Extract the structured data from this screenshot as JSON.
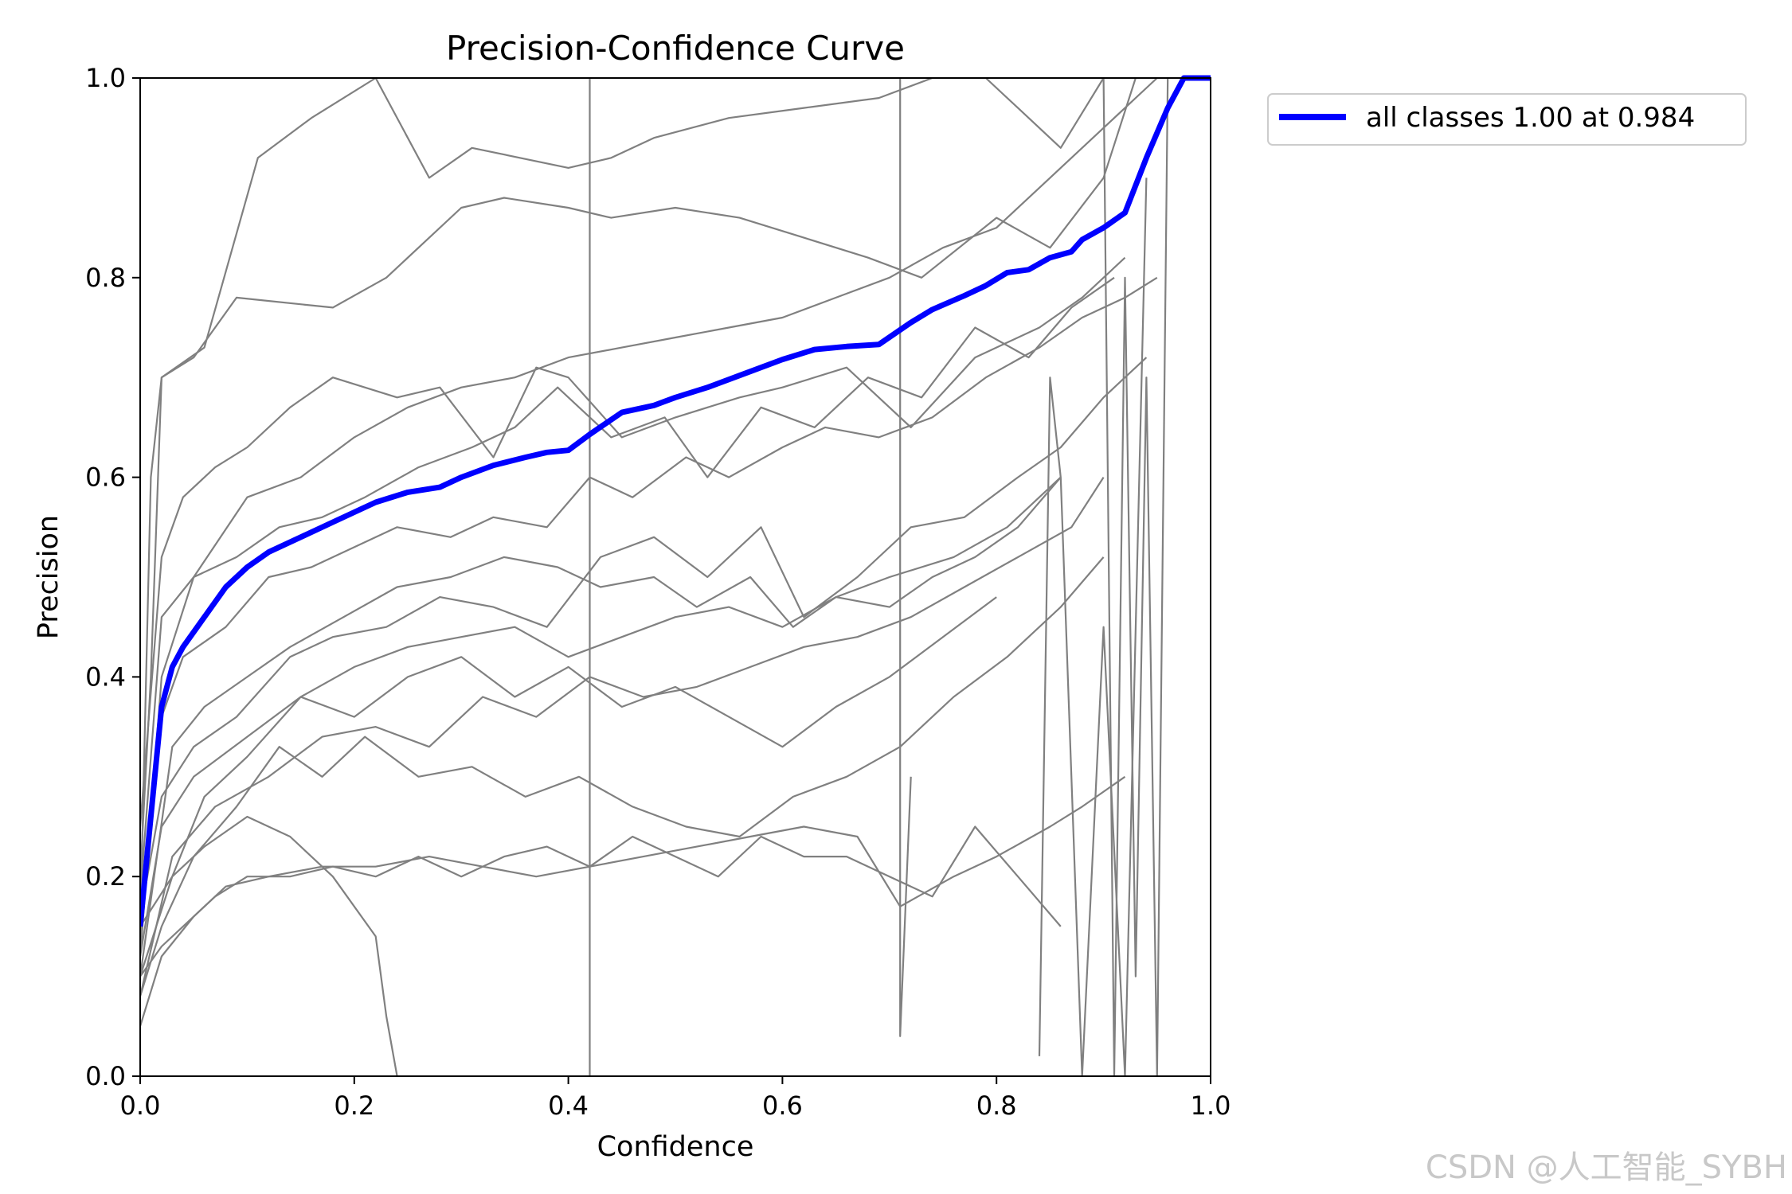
{
  "watermark": "CSDN @人工智能_SYBH",
  "chart_data": {
    "type": "line",
    "title": "Precision-Confidence Curve",
    "xlabel": "Confidence",
    "ylabel": "Precision",
    "xlim": [
      0,
      1
    ],
    "ylim": [
      0,
      1
    ],
    "xticks": [
      "0.0",
      "0.2",
      "0.4",
      "0.6",
      "0.8",
      "1.0"
    ],
    "yticks": [
      "0.0",
      "0.2",
      "0.4",
      "0.6",
      "0.8",
      "1.0"
    ],
    "legend_position": "outside-top-right",
    "colors": {
      "class": "#808080",
      "all": "#0000ff"
    },
    "series": [
      {
        "name": "all classes 1.00 at 0.984",
        "color": "#0000ff",
        "emphasis": true,
        "x": [
          0,
          0.01,
          0.02,
          0.03,
          0.04,
          0.06,
          0.08,
          0.1,
          0.12,
          0.15,
          0.18,
          0.2,
          0.22,
          0.25,
          0.28,
          0.3,
          0.33,
          0.36,
          0.38,
          0.4,
          0.42,
          0.45,
          0.48,
          0.5,
          0.53,
          0.56,
          0.6,
          0.63,
          0.66,
          0.69,
          0.72,
          0.74,
          0.77,
          0.79,
          0.81,
          0.83,
          0.85,
          0.87,
          0.88,
          0.9,
          0.92,
          0.94,
          0.96,
          0.975,
          0.984,
          1.0
        ],
        "y": [
          0.15,
          0.26,
          0.37,
          0.41,
          0.43,
          0.46,
          0.49,
          0.51,
          0.525,
          0.54,
          0.555,
          0.565,
          0.575,
          0.585,
          0.59,
          0.6,
          0.612,
          0.62,
          0.625,
          0.627,
          0.643,
          0.665,
          0.672,
          0.68,
          0.69,
          0.702,
          0.718,
          0.728,
          0.731,
          0.733,
          0.755,
          0.768,
          0.782,
          0.792,
          0.805,
          0.808,
          0.82,
          0.826,
          0.838,
          0.85,
          0.865,
          0.92,
          0.97,
          1.0,
          1.0,
          1.0
        ]
      },
      {
        "x": [
          0,
          0.02,
          0.05,
          0.1,
          0.15,
          0.2,
          0.25,
          0.3,
          0.35,
          0.4,
          0.45,
          0.5,
          0.55,
          0.6,
          0.65,
          0.7,
          0.75,
          0.8,
          0.85,
          0.9,
          0.95
        ],
        "y": [
          0.12,
          0.4,
          0.5,
          0.58,
          0.6,
          0.64,
          0.67,
          0.69,
          0.7,
          0.72,
          0.73,
          0.74,
          0.75,
          0.76,
          0.78,
          0.8,
          0.83,
          0.85,
          0.9,
          0.95,
          1.0
        ]
      },
      {
        "x": [
          0,
          0.01,
          0.02,
          0.06,
          0.11,
          0.16,
          0.22,
          0.27,
          0.31,
          0.4,
          0.44,
          0.48,
          0.55,
          0.62,
          0.69,
          0.74,
          0.79,
          0.82,
          0.86,
          0.9
        ],
        "y": [
          0.15,
          0.6,
          0.7,
          0.73,
          0.92,
          0.96,
          1.0,
          0.9,
          0.93,
          0.91,
          0.92,
          0.94,
          0.96,
          0.97,
          0.98,
          1.0,
          1.0,
          0.97,
          0.93,
          1.0
        ]
      },
      {
        "x": [
          0,
          0.01,
          0.02,
          0.05,
          0.09,
          0.18,
          0.23,
          0.3,
          0.34,
          0.4,
          0.44,
          0.5,
          0.56,
          0.62,
          0.68,
          0.73,
          0.8,
          0.85,
          0.9,
          0.93
        ],
        "y": [
          0.2,
          0.4,
          0.7,
          0.72,
          0.78,
          0.77,
          0.8,
          0.87,
          0.88,
          0.87,
          0.86,
          0.87,
          0.86,
          0.84,
          0.82,
          0.8,
          0.86,
          0.83,
          0.9,
          1.0
        ]
      },
      {
        "x": [
          0,
          0.02,
          0.04,
          0.07,
          0.1,
          0.14,
          0.18,
          0.24,
          0.28,
          0.33,
          0.37,
          0.4,
          0.45,
          0.5,
          0.56,
          0.6,
          0.66,
          0.72,
          0.78,
          0.84,
          0.88,
          0.92
        ],
        "y": [
          0.25,
          0.52,
          0.58,
          0.61,
          0.63,
          0.67,
          0.7,
          0.68,
          0.69,
          0.62,
          0.71,
          0.7,
          0.64,
          0.66,
          0.68,
          0.69,
          0.71,
          0.65,
          0.72,
          0.75,
          0.78,
          0.82
        ]
      },
      {
        "x": [
          0,
          0.02,
          0.05,
          0.09,
          0.13,
          0.17,
          0.21,
          0.26,
          0.31,
          0.35,
          0.39,
          0.44,
          0.49,
          0.53,
          0.58,
          0.63,
          0.68,
          0.73,
          0.78,
          0.83,
          0.87,
          0.91
        ],
        "y": [
          0.18,
          0.46,
          0.5,
          0.52,
          0.55,
          0.56,
          0.58,
          0.61,
          0.63,
          0.65,
          0.69,
          0.64,
          0.66,
          0.6,
          0.67,
          0.65,
          0.7,
          0.68,
          0.75,
          0.72,
          0.77,
          0.8
        ]
      },
      {
        "x": [
          0,
          0.02,
          0.04,
          0.08,
          0.12,
          0.16,
          0.2,
          0.24,
          0.29,
          0.33,
          0.38,
          0.42,
          0.46,
          0.51,
          0.55,
          0.6,
          0.64,
          0.69,
          0.74,
          0.79,
          0.84,
          0.88,
          0.92,
          0.95
        ],
        "y": [
          0.14,
          0.36,
          0.42,
          0.45,
          0.5,
          0.51,
          0.53,
          0.55,
          0.54,
          0.56,
          0.55,
          0.6,
          0.58,
          0.62,
          0.6,
          0.63,
          0.65,
          0.64,
          0.66,
          0.7,
          0.73,
          0.76,
          0.78,
          0.8
        ]
      },
      {
        "x": [
          0,
          0.03,
          0.06,
          0.1,
          0.14,
          0.19,
          0.24,
          0.29,
          0.34,
          0.39,
          0.43,
          0.48,
          0.52,
          0.57,
          0.61,
          0.65,
          0.7,
          0.76,
          0.81,
          0.86
        ],
        "y": [
          0.1,
          0.33,
          0.37,
          0.4,
          0.43,
          0.46,
          0.49,
          0.5,
          0.52,
          0.51,
          0.49,
          0.5,
          0.47,
          0.5,
          0.45,
          0.48,
          0.5,
          0.52,
          0.55,
          0.6
        ]
      },
      {
        "x": [
          0,
          0.02,
          0.05,
          0.09,
          0.14,
          0.18,
          0.23,
          0.28,
          0.33,
          0.38,
          0.43,
          0.48,
          0.53,
          0.58,
          0.62,
          0.67,
          0.72,
          0.77,
          0.82,
          0.86,
          0.9,
          0.94
        ],
        "y": [
          0.16,
          0.28,
          0.33,
          0.36,
          0.42,
          0.44,
          0.45,
          0.48,
          0.47,
          0.45,
          0.52,
          0.54,
          0.5,
          0.55,
          0.46,
          0.5,
          0.55,
          0.56,
          0.6,
          0.63,
          0.68,
          0.72
        ]
      },
      {
        "x": [
          0,
          0.03,
          0.07,
          0.12,
          0.17,
          0.22,
          0.27,
          0.32,
          0.37,
          0.42,
          0.47,
          0.52,
          0.57,
          0.62,
          0.67,
          0.72,
          0.77,
          0.82,
          0.87,
          0.9
        ],
        "y": [
          0.08,
          0.22,
          0.27,
          0.3,
          0.34,
          0.35,
          0.33,
          0.38,
          0.36,
          0.4,
          0.38,
          0.39,
          0.41,
          0.43,
          0.44,
          0.46,
          0.49,
          0.52,
          0.55,
          0.6
        ]
      },
      {
        "x": [
          0,
          0.02,
          0.05,
          0.1,
          0.15,
          0.2,
          0.25,
          0.3,
          0.35,
          0.4,
          0.45,
          0.5,
          0.55,
          0.6,
          0.65,
          0.7,
          0.74,
          0.78,
          0.82,
          0.86
        ],
        "y": [
          0.12,
          0.25,
          0.3,
          0.34,
          0.38,
          0.41,
          0.43,
          0.44,
          0.45,
          0.42,
          0.44,
          0.46,
          0.47,
          0.45,
          0.48,
          0.47,
          0.5,
          0.52,
          0.55,
          0.6
        ]
      },
      {
        "x": [
          0,
          0.03,
          0.06,
          0.1,
          0.15,
          0.2,
          0.25,
          0.3,
          0.35,
          0.4,
          0.45,
          0.5,
          0.55,
          0.6,
          0.65,
          0.7,
          0.75,
          0.8
        ],
        "y": [
          0.1,
          0.2,
          0.28,
          0.32,
          0.38,
          0.36,
          0.4,
          0.42,
          0.38,
          0.41,
          0.37,
          0.39,
          0.36,
          0.33,
          0.37,
          0.4,
          0.44,
          0.48
        ]
      },
      {
        "x": [
          0,
          0.02,
          0.05,
          0.09,
          0.13,
          0.17,
          0.21,
          0.26,
          0.31,
          0.36,
          0.41,
          0.46,
          0.51,
          0.56,
          0.61,
          0.66,
          0.71,
          0.76,
          0.81,
          0.86,
          0.9
        ],
        "y": [
          0.08,
          0.15,
          0.22,
          0.27,
          0.33,
          0.3,
          0.34,
          0.3,
          0.31,
          0.28,
          0.3,
          0.27,
          0.25,
          0.24,
          0.28,
          0.3,
          0.33,
          0.38,
          0.42,
          0.47,
          0.52
        ]
      },
      {
        "x": [
          0,
          0.02,
          0.05,
          0.08,
          0.12,
          0.17,
          0.22,
          0.27,
          0.32,
          0.37,
          0.42,
          0.47,
          0.52,
          0.57,
          0.62,
          0.67,
          0.71,
          0.76,
          0.8,
          0.85,
          0.88,
          0.92
        ],
        "y": [
          0.05,
          0.12,
          0.16,
          0.19,
          0.2,
          0.21,
          0.21,
          0.22,
          0.21,
          0.2,
          0.21,
          0.22,
          0.23,
          0.24,
          0.25,
          0.24,
          0.17,
          0.2,
          0.22,
          0.25,
          0.27,
          0.3
        ]
      },
      {
        "x": [
          0,
          0.02,
          0.04,
          0.07,
          0.1,
          0.14,
          0.18,
          0.22,
          0.26,
          0.3,
          0.34,
          0.38,
          0.42,
          0.46,
          0.5,
          0.54,
          0.58,
          0.62,
          0.66,
          0.7,
          0.74,
          0.78,
          0.82,
          0.86
        ],
        "y": [
          0.1,
          0.13,
          0.15,
          0.18,
          0.2,
          0.2,
          0.21,
          0.2,
          0.22,
          0.2,
          0.22,
          0.23,
          0.21,
          0.24,
          0.22,
          0.2,
          0.24,
          0.22,
          0.22,
          0.2,
          0.18,
          0.25,
          0.2,
          0.15
        ]
      },
      {
        "x": [
          0,
          0.03,
          0.06,
          0.1,
          0.14,
          0.18,
          0.22,
          0.23,
          0.24
        ],
        "y": [
          0.15,
          0.2,
          0.23,
          0.26,
          0.24,
          0.2,
          0.14,
          0.06,
          0.0
        ]
      },
      {
        "x": [
          0.42,
          0.42
        ],
        "y": [
          0.0,
          1.0
        ]
      },
      {
        "x": [
          0.71,
          0.71,
          0.72
        ],
        "y": [
          1.0,
          0.04,
          0.3
        ]
      },
      {
        "x": [
          0.84,
          0.85,
          0.86,
          0.88,
          0.9,
          0.92,
          0.94
        ],
        "y": [
          0.02,
          0.7,
          0.6,
          0.0,
          0.45,
          0.0,
          0.9
        ]
      },
      {
        "x": [
          0.9,
          0.91,
          0.92,
          0.93,
          0.94,
          0.95,
          0.96
        ],
        "y": [
          1.0,
          0.0,
          0.8,
          0.1,
          0.7,
          0.0,
          1.0
        ]
      }
    ]
  }
}
